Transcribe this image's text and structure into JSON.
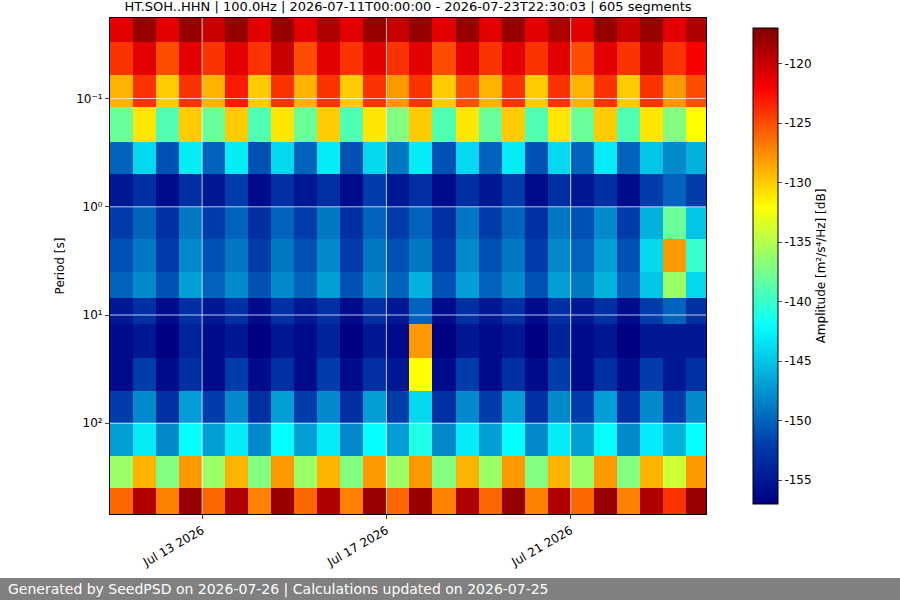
{
  "chart_data": {
    "type": "heatmap",
    "title": "HT.SOH..HHN | 100.0Hz | 2026-07-11T00:00:00 - 2026-07-23T22:30:03 | 605 segments",
    "ylabel": "Period [s]",
    "colorbar_label": "Amplitude [m²/s⁴/Hz] [dB]",
    "footer": "Generated by SeedPSD on 2026-07-26 | Calculations updated on 2026-07-25",
    "color": "jet",
    "log": "y",
    "grid": true,
    "xlim": [
      "2026-07-11 00:00:00",
      "2026-07-23 22:30:03"
    ],
    "xticks": [
      {
        "value": "2026-07-13",
        "label": "Jul 13 2026"
      },
      {
        "value": "2026-07-17",
        "label": "Jul 17 2026"
      },
      {
        "value": "2026-07-21",
        "label": "Jul 21 2026"
      }
    ],
    "ylim": [
      690,
      0.018
    ],
    "yticks": [
      {
        "value": 0.1,
        "label": "10⁻¹"
      },
      {
        "value": 1,
        "label": "10⁰"
      },
      {
        "value": 10,
        "label": "10¹"
      },
      {
        "value": 100,
        "label": "10²"
      }
    ],
    "zlim": [
      -157,
      -117
    ],
    "zticks": [
      -120,
      -125,
      -130,
      -135,
      -140,
      -145,
      -150,
      -155
    ],
    "x_edges": [
      "2026-07-11 00:00",
      "2026-07-11 12:00",
      "2026-07-12 00:00",
      "2026-07-12 12:00",
      "2026-07-13 00:00",
      "2026-07-13 12:00",
      "2026-07-14 00:00",
      "2026-07-14 12:00",
      "2026-07-15 00:00",
      "2026-07-15 12:00",
      "2026-07-16 00:00",
      "2026-07-16 12:00",
      "2026-07-17 00:00",
      "2026-07-17 12:00",
      "2026-07-18 00:00",
      "2026-07-18 12:00",
      "2026-07-19 00:00",
      "2026-07-19 12:00",
      "2026-07-20 00:00",
      "2026-07-20 12:00",
      "2026-07-21 00:00",
      "2026-07-21 12:00",
      "2026-07-22 00:00",
      "2026-07-22 12:00",
      "2026-07-23 00:00",
      "2026-07-23 12:00",
      "2026-07-23 22:30"
    ],
    "y_edges": [
      0.018,
      0.03,
      0.06,
      0.12,
      0.25,
      0.5,
      1,
      2,
      4,
      7,
      12,
      25,
      50,
      100,
      200,
      400,
      690
    ],
    "z": [
      [
        -121,
        -118,
        -121,
        -118,
        -120,
        -118,
        -121,
        -118,
        -121,
        -119,
        -121,
        -118,
        -120,
        -118,
        -121,
        -118,
        -121,
        -118,
        -121,
        -119,
        -121,
        -118,
        -120,
        -118,
        -121,
        -119
      ],
      [
        -124,
        -121,
        -125,
        -121,
        -124,
        -121,
        -124,
        -120,
        -125,
        -121,
        -124,
        -121,
        -124,
        -121,
        -125,
        -121,
        -124,
        -121,
        -124,
        -121,
        -125,
        -121,
        -124,
        -120,
        -124,
        -122
      ],
      [
        -129,
        -124,
        -130,
        -124,
        -129,
        -123,
        -130,
        -124,
        -129,
        -124,
        -130,
        -124,
        -128,
        -124,
        -130,
        -125,
        -129,
        -124,
        -130,
        -124,
        -129,
        -124,
        -130,
        -124,
        -128,
        -125
      ],
      [
        -138,
        -131,
        -139,
        -130,
        -138,
        -130,
        -139,
        -131,
        -138,
        -130,
        -139,
        -131,
        -137,
        -130,
        -139,
        -131,
        -138,
        -130,
        -139,
        -131,
        -138,
        -130,
        -139,
        -131,
        -137,
        -132
      ],
      [
        -150,
        -144,
        -151,
        -143,
        -150,
        -143,
        -151,
        -144,
        -150,
        -143,
        -151,
        -144,
        -149,
        -143,
        -151,
        -144,
        -150,
        -143,
        -151,
        -144,
        -150,
        -143,
        -150,
        -145,
        -148,
        -146
      ],
      [
        -155,
        -153,
        -156,
        -153,
        -155,
        -152,
        -156,
        -153,
        -155,
        -153,
        -156,
        -152,
        -155,
        -153,
        -156,
        -153,
        -155,
        -152,
        -156,
        -153,
        -155,
        -153,
        -156,
        -152,
        -150,
        -152
      ],
      [
        -152,
        -150,
        -153,
        -149,
        -152,
        -150,
        -153,
        -150,
        -152,
        -149,
        -153,
        -150,
        -152,
        -150,
        -153,
        -149,
        -152,
        -150,
        -153,
        -149,
        -151,
        -148,
        -152,
        -146,
        -138,
        -145
      ],
      [
        -151,
        -149,
        -152,
        -148,
        -151,
        -149,
        -152,
        -149,
        -151,
        -148,
        -152,
        -149,
        -151,
        -149,
        -152,
        -148,
        -151,
        -149,
        -152,
        -148,
        -150,
        -147,
        -151,
        -144,
        -128,
        -140
      ],
      [
        -150,
        -148,
        -151,
        -147,
        -150,
        -148,
        -151,
        -148,
        -150,
        -147,
        -151,
        -148,
        -150,
        -146,
        -151,
        -147,
        -150,
        -148,
        -151,
        -147,
        -149,
        -146,
        -150,
        -145,
        -136,
        -144
      ],
      [
        -155,
        -153,
        -156,
        -153,
        -155,
        -153,
        -156,
        -153,
        -155,
        -153,
        -156,
        -153,
        -155,
        -150,
        -156,
        -153,
        -155,
        -153,
        -156,
        -153,
        -155,
        -153,
        -156,
        -152,
        -150,
        -153
      ],
      [
        -156,
        -155,
        -157,
        -154,
        -156,
        -155,
        -157,
        -155,
        -156,
        -154,
        -157,
        -155,
        -156,
        -128,
        -157,
        -155,
        -156,
        -155,
        -157,
        -154,
        -156,
        -155,
        -157,
        -155,
        -155,
        -155
      ],
      [
        -156,
        -152,
        -156,
        -153,
        -156,
        -152,
        -156,
        -153,
        -156,
        -152,
        -156,
        -153,
        -155,
        -132,
        -156,
        -152,
        -156,
        -153,
        -156,
        -152,
        -156,
        -153,
        -156,
        -152,
        -155,
        -153
      ],
      [
        -152,
        -148,
        -153,
        -147,
        -152,
        -148,
        -153,
        -147,
        -152,
        -148,
        -153,
        -147,
        -152,
        -144,
        -153,
        -148,
        -152,
        -147,
        -153,
        -148,
        -152,
        -147,
        -153,
        -148,
        -152,
        -148
      ],
      [
        -147,
        -143,
        -148,
        -142,
        -147,
        -143,
        -148,
        -142,
        -147,
        -143,
        -148,
        -142,
        -147,
        -141,
        -148,
        -143,
        -147,
        -142,
        -148,
        -143,
        -147,
        -142,
        -148,
        -143,
        -146,
        -142
      ],
      [
        -136,
        -129,
        -137,
        -128,
        -136,
        -129,
        -137,
        -128,
        -136,
        -129,
        -137,
        -128,
        -136,
        -128,
        -137,
        -129,
        -136,
        -128,
        -137,
        -129,
        -136,
        -128,
        -137,
        -129,
        -134,
        -128
      ],
      [
        -126,
        -119,
        -127,
        -118,
        -126,
        -119,
        -127,
        -118,
        -126,
        -119,
        -127,
        -118,
        -126,
        -118,
        -127,
        -119,
        -126,
        -118,
        -127,
        -119,
        -126,
        -118,
        -127,
        -119,
        -124,
        -118
      ]
    ]
  }
}
